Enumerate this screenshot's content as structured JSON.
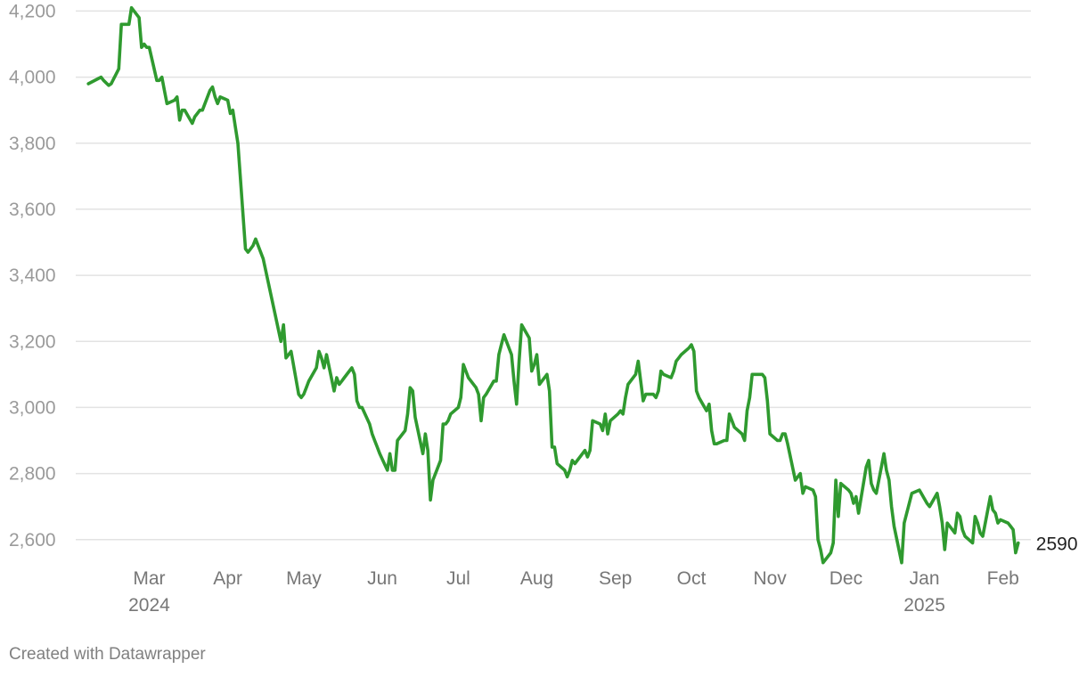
{
  "chart_data": {
    "type": "line",
    "title": "",
    "xlabel": "",
    "ylabel": "",
    "ylim": [
      2540,
      4220
    ],
    "xlim": [
      "2024-02-01",
      "2025-02-12"
    ],
    "grid": true,
    "colors": {
      "line": "#2f9a2f",
      "grid": "#e3e3e3",
      "tick": "#9a9a9a"
    },
    "yticks": [
      {
        "value": 2600,
        "label": "2,600"
      },
      {
        "value": 2800,
        "label": "2,800"
      },
      {
        "value": 3000,
        "label": "3,000"
      },
      {
        "value": 3200,
        "label": "3,200"
      },
      {
        "value": 3400,
        "label": "3,400"
      },
      {
        "value": 3600,
        "label": "3,600"
      },
      {
        "value": 3800,
        "label": "3,800"
      },
      {
        "value": 4000,
        "label": "4,000"
      },
      {
        "value": 4200,
        "label": "4,200"
      }
    ],
    "xticks": [
      {
        "date": "2024-03-01",
        "label": "Mar",
        "sub": "2024"
      },
      {
        "date": "2024-04-01",
        "label": "Apr",
        "sub": ""
      },
      {
        "date": "2024-05-01",
        "label": "May",
        "sub": ""
      },
      {
        "date": "2024-06-01",
        "label": "Jun",
        "sub": ""
      },
      {
        "date": "2024-07-01",
        "label": "Jul",
        "sub": ""
      },
      {
        "date": "2024-08-01",
        "label": "Aug",
        "sub": ""
      },
      {
        "date": "2024-09-01",
        "label": "Sep",
        "sub": ""
      },
      {
        "date": "2024-10-01",
        "label": "Oct",
        "sub": ""
      },
      {
        "date": "2024-11-01",
        "label": "Nov",
        "sub": ""
      },
      {
        "date": "2024-12-01",
        "label": "Dec",
        "sub": ""
      },
      {
        "date": "2025-01-01",
        "label": "Jan",
        "sub": "2025"
      },
      {
        "date": "2025-02-01",
        "label": "Feb",
        "sub": ""
      }
    ],
    "series": [
      {
        "end_label": "2590",
        "x": [
          "2024-02-06",
          "2024-02-11",
          "2024-02-12",
          "2024-02-14",
          "2024-02-15",
          "2024-02-18",
          "2024-02-19",
          "2024-02-20",
          "2024-02-21",
          "2024-02-22",
          "2024-02-23",
          "2024-02-26",
          "2024-02-27",
          "2024-02-28",
          "2024-02-29",
          "2024-03-01",
          "2024-03-04",
          "2024-03-05",
          "2024-03-06",
          "2024-03-07",
          "2024-03-08",
          "2024-03-11",
          "2024-03-12",
          "2024-03-13",
          "2024-03-14",
          "2024-03-15",
          "2024-03-18",
          "2024-03-19",
          "2024-03-20",
          "2024-03-21",
          "2024-03-22",
          "2024-03-25",
          "2024-03-26",
          "2024-03-27",
          "2024-03-28",
          "2024-03-29",
          "2024-04-01",
          "2024-04-02",
          "2024-04-03",
          "2024-04-04",
          "2024-04-05",
          "2024-04-08",
          "2024-04-09",
          "2024-04-10",
          "2024-04-11",
          "2024-04-12",
          "2024-04-15",
          "2024-04-22",
          "2024-04-23",
          "2024-04-24",
          "2024-04-25",
          "2024-04-26",
          "2024-04-29",
          "2024-04-30",
          "2024-05-01",
          "2024-05-02",
          "2024-05-03",
          "2024-05-06",
          "2024-05-07",
          "2024-05-08",
          "2024-05-09",
          "2024-05-10",
          "2024-05-13",
          "2024-05-14",
          "2024-05-15",
          "2024-05-16",
          "2024-05-17",
          "2024-05-20",
          "2024-05-21",
          "2024-05-22",
          "2024-05-23",
          "2024-05-24",
          "2024-05-27",
          "2024-05-28",
          "2024-05-29",
          "2024-05-30",
          "2024-05-31",
          "2024-06-03",
          "2024-06-04",
          "2024-06-05",
          "2024-06-06",
          "2024-06-07",
          "2024-06-10",
          "2024-06-11",
          "2024-06-12",
          "2024-06-13",
          "2024-06-14",
          "2024-06-17",
          "2024-06-18",
          "2024-06-19",
          "2024-06-20",
          "2024-06-21",
          "2024-06-24",
          "2024-06-25",
          "2024-06-26",
          "2024-06-27",
          "2024-06-28",
          "2024-07-01",
          "2024-07-02",
          "2024-07-03",
          "2024-07-04",
          "2024-07-05",
          "2024-07-08",
          "2024-07-09",
          "2024-07-10",
          "2024-07-11",
          "2024-07-12",
          "2024-07-15",
          "2024-07-16",
          "2024-07-17",
          "2024-07-18",
          "2024-07-19",
          "2024-07-22",
          "2024-07-23",
          "2024-07-24",
          "2024-07-25",
          "2024-07-26",
          "2024-07-29",
          "2024-07-30",
          "2024-07-31",
          "2024-08-01",
          "2024-08-02",
          "2024-08-05",
          "2024-08-06",
          "2024-08-07",
          "2024-08-08",
          "2024-08-09",
          "2024-08-12",
          "2024-08-13",
          "2024-08-14",
          "2024-08-15",
          "2024-08-16",
          "2024-08-19",
          "2024-08-20",
          "2024-08-21",
          "2024-08-22",
          "2024-08-23",
          "2024-08-26",
          "2024-08-27",
          "2024-08-28",
          "2024-08-29",
          "2024-08-30",
          "2024-09-02",
          "2024-09-03",
          "2024-09-04",
          "2024-09-05",
          "2024-09-06",
          "2024-09-09",
          "2024-09-10",
          "2024-09-11",
          "2024-09-12",
          "2024-09-13",
          "2024-09-16",
          "2024-09-17",
          "2024-09-18",
          "2024-09-19",
          "2024-09-20",
          "2024-09-23",
          "2024-09-24",
          "2024-09-25",
          "2024-09-26",
          "2024-09-27",
          "2024-09-30",
          "2024-10-01",
          "2024-10-02",
          "2024-10-03",
          "2024-10-04",
          "2024-10-07",
          "2024-10-08",
          "2024-10-09",
          "2024-10-10",
          "2024-10-11",
          "2024-10-14",
          "2024-10-15",
          "2024-10-16",
          "2024-10-17",
          "2024-10-18",
          "2024-10-21",
          "2024-10-22",
          "2024-10-23",
          "2024-10-24",
          "2024-10-25",
          "2024-10-28",
          "2024-10-29",
          "2024-10-30",
          "2024-10-31",
          "2024-11-01",
          "2024-11-04",
          "2024-11-05",
          "2024-11-06",
          "2024-11-07",
          "2024-11-08",
          "2024-11-11",
          "2024-11-12",
          "2024-11-13",
          "2024-11-14",
          "2024-11-15",
          "2024-11-18",
          "2024-11-19",
          "2024-11-20",
          "2024-11-21",
          "2024-11-22",
          "2024-11-25",
          "2024-11-26",
          "2024-11-27",
          "2024-11-28",
          "2024-11-29",
          "2024-12-02",
          "2024-12-03",
          "2024-12-04",
          "2024-12-05",
          "2024-12-06",
          "2024-12-09",
          "2024-12-10",
          "2024-12-11",
          "2024-12-12",
          "2024-12-13",
          "2024-12-16",
          "2024-12-17",
          "2024-12-18",
          "2024-12-19",
          "2024-12-20",
          "2024-12-23",
          "2024-12-24",
          "2024-12-27",
          "2024-12-30",
          "2025-01-02",
          "2025-01-03",
          "2025-01-06",
          "2025-01-07",
          "2025-01-08",
          "2025-01-09",
          "2025-01-10",
          "2025-01-13",
          "2025-01-14",
          "2025-01-15",
          "2025-01-16",
          "2025-01-17",
          "2025-01-20",
          "2025-01-21",
          "2025-01-22",
          "2025-01-23",
          "2025-01-24",
          "2025-01-27",
          "2025-01-28",
          "2025-01-29",
          "2025-01-30",
          "2025-01-31",
          "2025-02-03",
          "2025-02-04",
          "2025-02-05",
          "2025-02-06",
          "2025-02-07"
        ],
        "y": [
          3980,
          4000,
          3990,
          3975,
          3980,
          4025,
          4160,
          4160,
          4160,
          4160,
          4210,
          4180,
          4090,
          4100,
          4090,
          4090,
          3990,
          3990,
          4000,
          3960,
          3920,
          3930,
          3940,
          3870,
          3900,
          3900,
          3860,
          3880,
          3890,
          3900,
          3900,
          3960,
          3970,
          3940,
          3920,
          3940,
          3930,
          3890,
          3900,
          3850,
          3800,
          3480,
          3470,
          3480,
          3490,
          3510,
          3450,
          3200,
          3250,
          3150,
          3160,
          3170,
          3040,
          3030,
          3040,
          3060,
          3080,
          3120,
          3170,
          3150,
          3120,
          3160,
          3050,
          3090,
          3070,
          3080,
          3090,
          3120,
          3100,
          3020,
          3000,
          3000,
          2950,
          2920,
          2900,
          2880,
          2860,
          2810,
          2860,
          2810,
          2810,
          2900,
          2930,
          2980,
          3060,
          3050,
          2970,
          2860,
          2920,
          2870,
          2720,
          2780,
          2840,
          2950,
          2950,
          2960,
          2980,
          3000,
          3030,
          3130,
          3110,
          3090,
          3060,
          3040,
          2960,
          3030,
          3040,
          3080,
          3080,
          3160,
          3190,
          3220,
          3160,
          3080,
          3010,
          3140,
          3250,
          3210,
          3110,
          3130,
          3160,
          3070,
          3100,
          3050,
          2880,
          2880,
          2830,
          2810,
          2790,
          2810,
          2840,
          2830,
          2860,
          2870,
          2850,
          2870,
          2960,
          2950,
          2930,
          2980,
          2920,
          2960,
          2980,
          2990,
          2980,
          3030,
          3070,
          3100,
          3140,
          3080,
          3020,
          3040,
          3040,
          3030,
          3050,
          3110,
          3100,
          3090,
          3110,
          3140,
          3150,
          3160,
          3180,
          3190,
          3170,
          3050,
          3030,
          2990,
          3010,
          2930,
          2890,
          2890,
          2900,
          2900,
          2980,
          2960,
          2940,
          2920,
          2900,
          2990,
          3030,
          3100,
          3100,
          3100,
          3090,
          3020,
          2920,
          2900,
          2900,
          2920,
          2920,
          2890,
          2780,
          2790,
          2800,
          2740,
          2760,
          2750,
          2730,
          2600,
          2570,
          2530,
          2560,
          2590,
          2780,
          2670,
          2770,
          2750,
          2740,
          2710,
          2730,
          2680,
          2820,
          2840,
          2770,
          2750,
          2740,
          2860,
          2810,
          2780,
          2700,
          2640,
          2530,
          2650,
          2740,
          2750,
          2710,
          2700,
          2740,
          2700,
          2650,
          2570,
          2650,
          2620,
          2680,
          2670,
          2630,
          2610,
          2590,
          2670,
          2650,
          2620,
          2610,
          2730,
          2690,
          2680,
          2650,
          2660,
          2650,
          2640,
          2630,
          2560,
          2590
        ]
      }
    ]
  },
  "footer": {
    "credit": "Created with Datawrapper"
  }
}
